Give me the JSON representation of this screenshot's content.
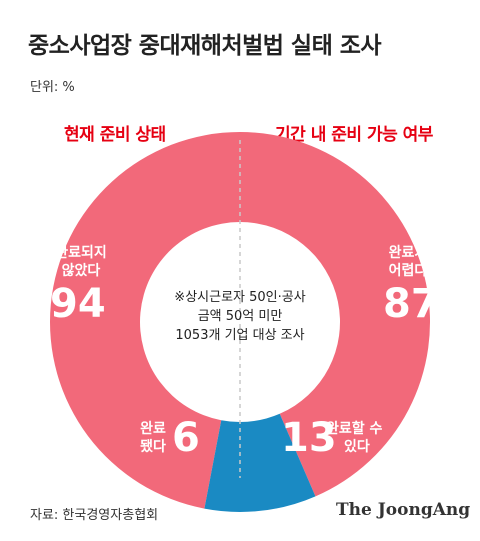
{
  "title": "중소사업장 중대재해처벌법 실태 조사",
  "unit": "단위: %",
  "note": [
    "※상시근로자 50인·공사",
    "금액 50억 미만",
    "1053개 기업 대상 조사"
  ],
  "source": "자료: 한국경영자총협회",
  "logo": "The JoongAng",
  "colors": {
    "major": "#f2697a",
    "minor": "#1a8ac3",
    "title_red": "#e60012"
  },
  "chart_data": [
    {
      "type": "pie",
      "title": "현재 준비 상태",
      "slices": [
        {
          "label": "완료되지 않았다",
          "value": 94,
          "color": "#f2697a"
        },
        {
          "label": "완료됐다",
          "value": 6,
          "color": "#1a8ac3"
        }
      ]
    },
    {
      "type": "pie",
      "title": "기간 내 준비 가능 여부",
      "slices": [
        {
          "label": "완료가 어렵다",
          "value": 87,
          "color": "#f2697a"
        },
        {
          "label": "완료할 수 있다",
          "value": 13,
          "color": "#1a8ac3"
        }
      ]
    }
  ]
}
